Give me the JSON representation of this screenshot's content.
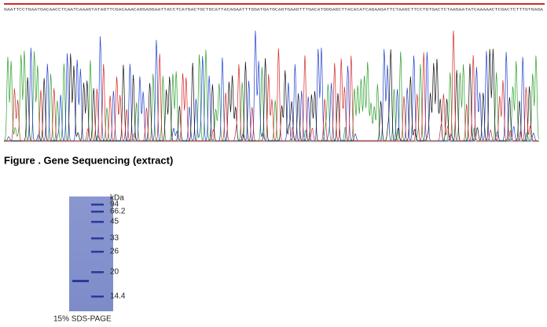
{
  "sequence": "GAATTCCTGAATGACAACCTCAATCAAAGTATAGTTCGACAAACAGGAGGAATTACCTCATGACTGCTGCATTACAGAATTTGGATGATGCAGTGAAGTTTGACATGGGAGCTTACACATCAGAAGATTCTAAGCTTCCTGTGACTCTAAGAATATCAAAAACTCGACTCTTTGTGAGA",
  "caption": "Figure . Gene Sequencing (extract)",
  "gel": {
    "unit": "kDa",
    "markers": [
      "94",
      "66.2",
      "45",
      "33",
      "26",
      "20",
      "14.4"
    ],
    "label": "15% SDS-PAGE"
  }
}
